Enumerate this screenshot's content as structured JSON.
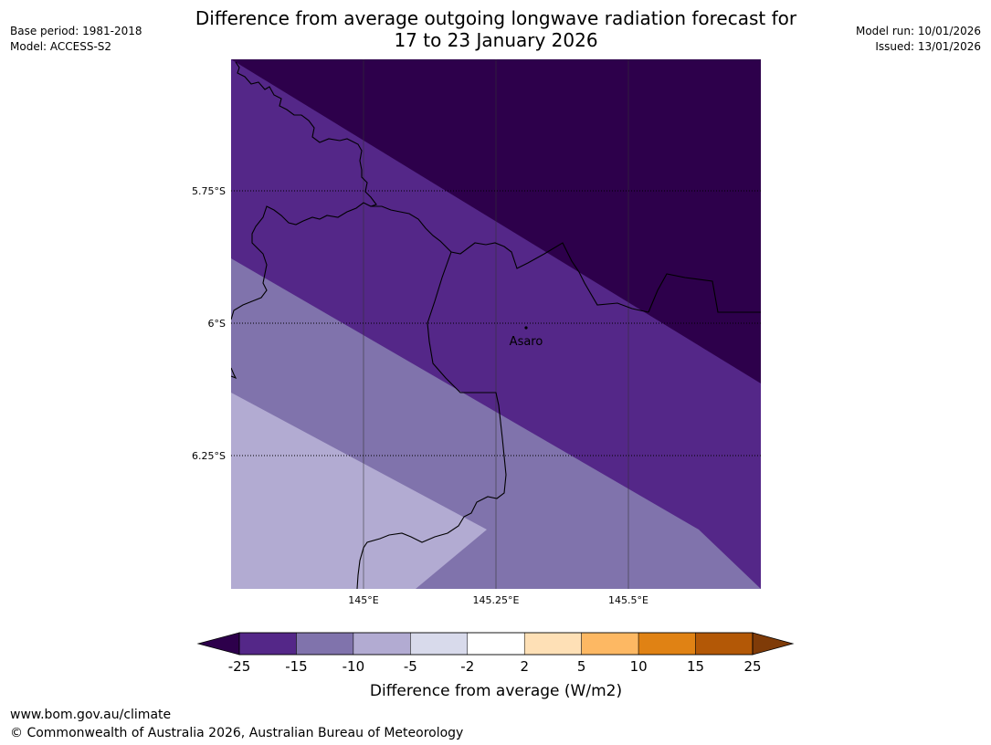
{
  "title": {
    "line1": "Difference from average outgoing longwave radiation forecast for",
    "line2": "17 to 23 January 2026"
  },
  "meta_left": {
    "base_period": "Base period: 1981-2018",
    "model": "Model: ACCESS-S2"
  },
  "meta_right": {
    "model_run": "Model run: 10/01/2026",
    "issued": "Issued: 13/01/2026"
  },
  "map": {
    "lat_labels": [
      "5.75°S",
      "6°S",
      "6.25°S"
    ],
    "lon_labels": [
      "145°E",
      "145.25°E",
      "145.5°E"
    ],
    "place_name": "Asaro",
    "band_colors": [
      "#2d004b",
      "#542788",
      "#8073ac",
      "#b2abd2"
    ]
  },
  "colorbar": {
    "ticks": [
      "-25",
      "-15",
      "-10",
      "-5",
      "-2",
      "2",
      "5",
      "10",
      "15",
      "25"
    ],
    "colors": [
      "#542788",
      "#8073ac",
      "#b2abd2",
      "#d8daeb",
      "#ffffff",
      "#fee0b6",
      "#fdb863",
      "#e08214",
      "#b35806"
    ],
    "extend_low_color": "#2d004b",
    "extend_high_color": "#7f3b08",
    "label": "Difference from average (W/m2)"
  },
  "footer": {
    "url": "www.bom.gov.au/climate",
    "copyright": "© Commonwealth of Australia 2026, Australian Bureau of Meteorology"
  }
}
